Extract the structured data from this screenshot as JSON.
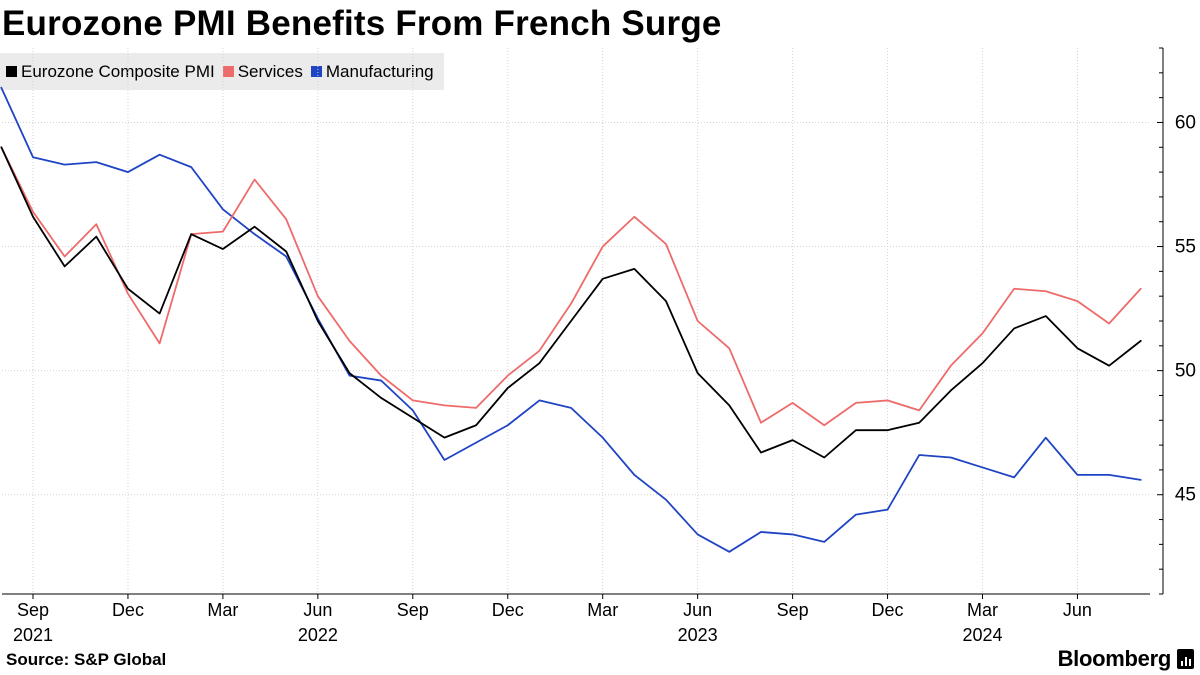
{
  "title": "Eurozone PMI Benefits From French Surge",
  "source": "Source: S&P Global",
  "brand": "Bloomberg",
  "brand_icon": "bloomberg-terminal-icon",
  "chart_data": {
    "type": "line",
    "title": "Eurozone PMI Benefits From French Surge",
    "xlabel": "",
    "ylabel": "",
    "ylim": [
      41,
      63
    ],
    "yticks": [
      45,
      50,
      55,
      60
    ],
    "grid": true,
    "legend_position": "top-left",
    "x": [
      "Aug 2021",
      "Sep 2021",
      "Oct 2021",
      "Nov 2021",
      "Dec 2021",
      "Jan 2022",
      "Feb 2022",
      "Mar 2022",
      "Apr 2022",
      "May 2022",
      "Jun 2022",
      "Jul 2022",
      "Aug 2022",
      "Sep 2022",
      "Oct 2022",
      "Nov 2022",
      "Dec 2022",
      "Jan 2023",
      "Feb 2023",
      "Mar 2023",
      "Apr 2023",
      "May 2023",
      "Jun 2023",
      "Jul 2023",
      "Aug 2023",
      "Sep 2023",
      "Oct 2023",
      "Nov 2023",
      "Dec 2023",
      "Jan 2024",
      "Feb 2024",
      "Mar 2024",
      "Apr 2024",
      "May 2024",
      "Jun 2024",
      "Jul 2024",
      "Aug 2024"
    ],
    "xtick_labels": [
      {
        "index": 1,
        "month": "Sep",
        "year": "2021"
      },
      {
        "index": 4,
        "month": "Dec",
        "year": ""
      },
      {
        "index": 7,
        "month": "Mar",
        "year": ""
      },
      {
        "index": 10,
        "month": "Jun",
        "year": "2022"
      },
      {
        "index": 13,
        "month": "Sep",
        "year": ""
      },
      {
        "index": 16,
        "month": "Dec",
        "year": ""
      },
      {
        "index": 19,
        "month": "Mar",
        "year": ""
      },
      {
        "index": 22,
        "month": "Jun",
        "year": "2023"
      },
      {
        "index": 25,
        "month": "Sep",
        "year": ""
      },
      {
        "index": 28,
        "month": "Dec",
        "year": ""
      },
      {
        "index": 31,
        "month": "Mar",
        "year": "2024"
      },
      {
        "index": 34,
        "month": "Jun",
        "year": ""
      }
    ],
    "series": [
      {
        "name": "Eurozone Composite PMI",
        "color": "#000000",
        "values": [
          59.0,
          56.2,
          54.2,
          55.4,
          53.3,
          52.3,
          55.5,
          54.9,
          55.8,
          54.8,
          52.0,
          49.9,
          48.9,
          48.1,
          47.3,
          47.8,
          49.3,
          50.3,
          52.0,
          53.7,
          54.1,
          52.8,
          49.9,
          48.6,
          46.7,
          47.2,
          46.5,
          47.6,
          47.6,
          47.9,
          49.2,
          50.3,
          51.7,
          52.2,
          50.9,
          50.2,
          51.2
        ]
      },
      {
        "name": "Services",
        "color": "#ee6b6b",
        "values": [
          59.0,
          56.4,
          54.6,
          55.9,
          53.1,
          51.1,
          55.5,
          55.6,
          57.7,
          56.1,
          53.0,
          51.2,
          49.8,
          48.8,
          48.6,
          48.5,
          49.8,
          50.8,
          52.7,
          55.0,
          56.2,
          55.1,
          52.0,
          50.9,
          47.9,
          48.7,
          47.8,
          48.7,
          48.8,
          48.4,
          50.2,
          51.5,
          53.3,
          53.2,
          52.8,
          51.9,
          53.3
        ]
      },
      {
        "name": "Manufacturing",
        "color": "#1f44c4",
        "values": [
          61.4,
          58.6,
          58.3,
          58.4,
          58.0,
          58.7,
          58.2,
          56.5,
          55.5,
          54.6,
          52.1,
          49.8,
          49.6,
          48.4,
          46.4,
          47.1,
          47.8,
          48.8,
          48.5,
          47.3,
          45.8,
          44.8,
          43.4,
          42.7,
          43.5,
          43.4,
          43.1,
          44.2,
          44.4,
          46.6,
          46.5,
          46.1,
          45.7,
          47.3,
          45.8,
          45.8,
          45.6
        ]
      }
    ]
  }
}
